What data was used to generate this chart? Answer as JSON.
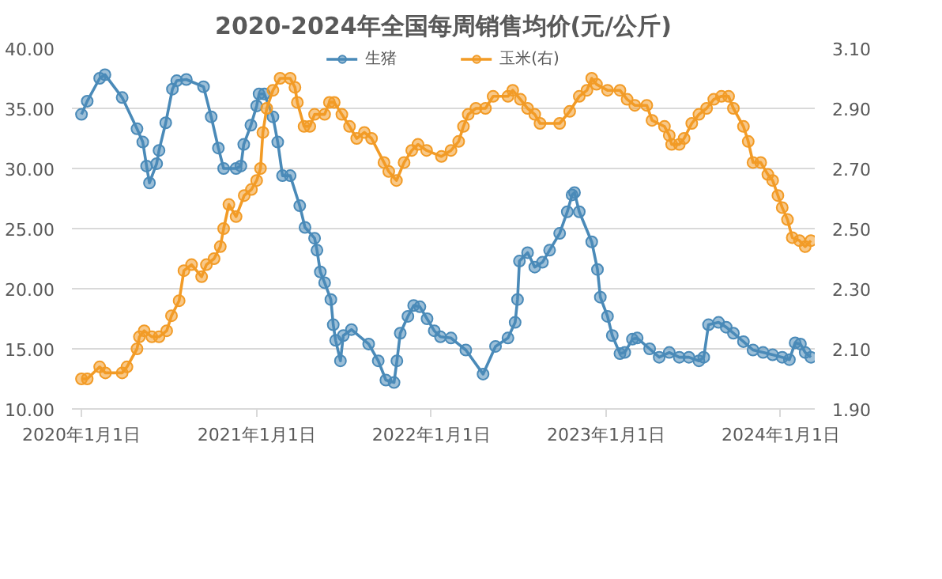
{
  "chart_data": {
    "type": "line",
    "title": "2020-2024年全国每周销售均价(元/公斤)",
    "marker": "circle",
    "legend": "top",
    "grid": "y",
    "xlim": [
      "2019-12-12",
      "2024-03-12"
    ],
    "xticks": [
      {
        "value": "2020-01-01",
        "label": "2020年1月1日"
      },
      {
        "value": "2021-01-01",
        "label": "2021年1月1日"
      },
      {
        "value": "2022-01-01",
        "label": "2022年1月1日"
      },
      {
        "value": "2023-01-01",
        "label": "2023年1月1日"
      },
      {
        "value": "2024-01-01",
        "label": "2024年1月1日"
      }
    ],
    "ylim": [
      10,
      40
    ],
    "yticks": [
      {
        "value": 10,
        "label": "10.00"
      },
      {
        "value": 15,
        "label": "15.00"
      },
      {
        "value": 20,
        "label": "20.00"
      },
      {
        "value": 25,
        "label": "25.00"
      },
      {
        "value": 30,
        "label": "30.00"
      },
      {
        "value": 35,
        "label": "35.00"
      },
      {
        "value": 40,
        "label": "40.00"
      }
    ],
    "y2lim": [
      1.9,
      3.1
    ],
    "y2ticks": [
      {
        "value": 1.9,
        "label": "1.90"
      },
      {
        "value": 2.1,
        "label": "2.10"
      },
      {
        "value": 2.3,
        "label": "2.30"
      },
      {
        "value": 2.5,
        "label": "2.50"
      },
      {
        "value": 2.7,
        "label": "2.70"
      },
      {
        "value": 2.9,
        "label": "2.90"
      },
      {
        "value": 3.1,
        "label": "3.10"
      }
    ],
    "series": [
      {
        "name": "生猪",
        "color": "#4a8ab8",
        "x": [
          "2020-01-01",
          "2020-01-13",
          "2020-02-08",
          "2020-02-19",
          "2020-03-26",
          "2020-04-26",
          "2020-05-08",
          "2020-05-16",
          "2020-05-22",
          "2020-06-06",
          "2020-06-11",
          "2020-06-25",
          "2020-07-09",
          "2020-07-18",
          "2020-08-07",
          "2020-09-12",
          "2020-09-28",
          "2020-10-13",
          "2020-10-24",
          "2020-11-19",
          "2020-11-29",
          "2020-12-05",
          "2020-12-20",
          "2021-01-01",
          "2021-01-06",
          "2021-01-17",
          "2021-02-04",
          "2021-02-14",
          "2021-02-24",
          "2021-03-12",
          "2021-04-01",
          "2021-04-12",
          "2021-05-02",
          "2021-05-07",
          "2021-05-14",
          "2021-05-23",
          "2021-06-05",
          "2021-06-10",
          "2021-06-15",
          "2021-06-25",
          "2021-07-01",
          "2021-07-18",
          "2021-08-23",
          "2021-09-12",
          "2021-09-28",
          "2021-10-15",
          "2021-10-21",
          "2021-10-28",
          "2021-11-13",
          "2021-11-25",
          "2021-12-08",
          "2021-12-23",
          "2022-01-07",
          "2022-01-20",
          "2022-02-11",
          "2022-03-14",
          "2022-04-19",
          "2022-05-15",
          "2022-06-10",
          "2022-06-25",
          "2022-06-30",
          "2022-07-04",
          "2022-07-21",
          "2022-08-05",
          "2022-08-21",
          "2022-09-05",
          "2022-09-26",
          "2022-10-12",
          "2022-10-22",
          "2022-10-27",
          "2022-11-06",
          "2022-12-02",
          "2022-12-14",
          "2022-12-20",
          "2023-01-04",
          "2023-01-14",
          "2023-01-30",
          "2023-02-09",
          "2023-02-25",
          "2023-03-07",
          "2023-04-02",
          "2023-04-22",
          "2023-05-13",
          "2023-06-03",
          "2023-06-23",
          "2023-07-14",
          "2023-07-24",
          "2023-08-03",
          "2023-08-24",
          "2023-09-09",
          "2023-09-24",
          "2023-10-15",
          "2023-11-04",
          "2023-11-25",
          "2023-12-15",
          "2024-01-04",
          "2024-01-19",
          "2024-01-31",
          "2024-02-11",
          "2024-02-21",
          "2024-03-04"
        ],
        "values": [
          34.5,
          35.6,
          37.5,
          37.8,
          35.9,
          33.3,
          32.2,
          30.2,
          28.8,
          30.4,
          31.5,
          33.8,
          36.6,
          37.3,
          37.4,
          36.8,
          34.3,
          31.7,
          30.0,
          30.0,
          30.2,
          32.0,
          33.6,
          35.2,
          36.2,
          36.2,
          34.3,
          32.2,
          29.4,
          29.4,
          26.9,
          25.1,
          24.2,
          23.2,
          21.4,
          20.5,
          19.1,
          17.0,
          15.7,
          14.0,
          16.1,
          16.6,
          15.4,
          14.0,
          12.4,
          12.2,
          14.0,
          16.3,
          17.7,
          18.6,
          18.5,
          17.5,
          16.5,
          16.0,
          15.9,
          14.9,
          12.9,
          15.2,
          15.9,
          17.2,
          19.1,
          22.3,
          23.0,
          21.8,
          22.2,
          23.2,
          24.6,
          26.4,
          27.8,
          28.0,
          26.4,
          23.9,
          21.6,
          19.3,
          17.7,
          16.1,
          14.6,
          14.7,
          15.8,
          15.9,
          15.0,
          14.3,
          14.7,
          14.3,
          14.3,
          14.0,
          14.3,
          17.0,
          17.2,
          16.8,
          16.3,
          15.6,
          14.9,
          14.7,
          14.5,
          14.3,
          14.1,
          15.5,
          15.4,
          14.7,
          14.3
        ]
      },
      {
        "name": "玉米(右)",
        "color": "#f29b26",
        "axis": "y2",
        "x": [
          "2020-01-01",
          "2020-01-13",
          "2020-02-08",
          "2020-02-20",
          "2020-03-26",
          "2020-04-05",
          "2020-04-26",
          "2020-05-01",
          "2020-05-11",
          "2020-05-27",
          "2020-06-11",
          "2020-06-27",
          "2020-07-07",
          "2020-07-23",
          "2020-08-02",
          "2020-08-18",
          "2020-09-08",
          "2020-09-18",
          "2020-10-04",
          "2020-10-17",
          "2020-10-24",
          "2020-11-04",
          "2020-11-19",
          "2020-12-06",
          "2020-12-21",
          "2021-01-01",
          "2021-01-09",
          "2021-01-14",
          "2021-01-22",
          "2021-02-04",
          "2021-02-19",
          "2021-03-12",
          "2021-03-22",
          "2021-03-27",
          "2021-04-10",
          "2021-04-22",
          "2021-05-02",
          "2021-05-23",
          "2021-06-02",
          "2021-06-12",
          "2021-06-28",
          "2021-07-14",
          "2021-07-29",
          "2021-08-14",
          "2021-08-29",
          "2021-09-24",
          "2021-10-04",
          "2021-10-20",
          "2021-11-05",
          "2021-11-21",
          "2021-12-04",
          "2021-12-22",
          "2022-01-22",
          "2022-02-11",
          "2022-02-27",
          "2022-03-09",
          "2022-03-19",
          "2022-04-04",
          "2022-04-24",
          "2022-05-10",
          "2022-06-10",
          "2022-06-20",
          "2022-07-06",
          "2022-07-21",
          "2022-08-05",
          "2022-08-16",
          "2022-09-26",
          "2022-10-17",
          "2022-11-06",
          "2022-11-22",
          "2022-12-02",
          "2022-12-12",
          "2023-01-04",
          "2023-01-30",
          "2023-02-14",
          "2023-03-02",
          "2023-03-27",
          "2023-04-07",
          "2023-05-03",
          "2023-05-13",
          "2023-05-18",
          "2023-06-03",
          "2023-06-13",
          "2023-06-29",
          "2023-07-14",
          "2023-07-30",
          "2023-08-14",
          "2023-08-30",
          "2023-09-14",
          "2023-09-24",
          "2023-10-15",
          "2023-10-25",
          "2023-11-04",
          "2023-11-20",
          "2023-12-05",
          "2023-12-15",
          "2023-12-26",
          "2024-01-04",
          "2024-01-15",
          "2024-01-25",
          "2024-02-09",
          "2024-02-21",
          "2024-03-04"
        ],
        "values": [
          2.0,
          2.0,
          2.04,
          2.02,
          2.02,
          2.04,
          2.1,
          2.14,
          2.16,
          2.14,
          2.14,
          2.16,
          2.21,
          2.26,
          2.36,
          2.38,
          2.34,
          2.38,
          2.4,
          2.44,
          2.5,
          2.58,
          2.54,
          2.61,
          2.63,
          2.66,
          2.7,
          2.82,
          2.9,
          2.96,
          3.0,
          3.0,
          2.97,
          2.92,
          2.84,
          2.84,
          2.88,
          2.88,
          2.92,
          2.92,
          2.88,
          2.84,
          2.8,
          2.82,
          2.8,
          2.72,
          2.69,
          2.66,
          2.72,
          2.76,
          2.78,
          2.76,
          2.74,
          2.76,
          2.79,
          2.84,
          2.88,
          2.9,
          2.9,
          2.94,
          2.94,
          2.96,
          2.93,
          2.9,
          2.88,
          2.85,
          2.85,
          2.89,
          2.94,
          2.96,
          3.0,
          2.98,
          2.96,
          2.96,
          2.93,
          2.91,
          2.91,
          2.86,
          2.84,
          2.81,
          2.78,
          2.78,
          2.8,
          2.85,
          2.88,
          2.9,
          2.93,
          2.94,
          2.94,
          2.9,
          2.84,
          2.79,
          2.72,
          2.72,
          2.68,
          2.66,
          2.61,
          2.57,
          2.53,
          2.47,
          2.46,
          2.44,
          2.46
        ]
      }
    ]
  }
}
